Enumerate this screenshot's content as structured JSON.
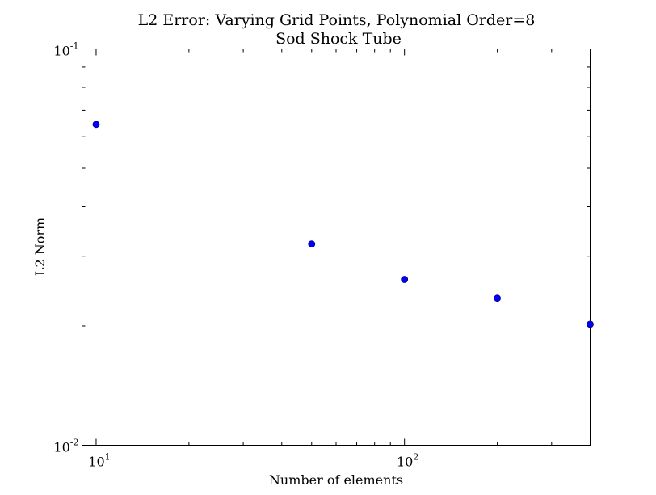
{
  "chart_data": {
    "type": "scatter",
    "title": [
      "L2 Error: Varying Grid Points,  Polynomial Order=8",
      "Sod Shock Tube"
    ],
    "xlabel": "Number of elements",
    "ylabel": "L2 Norm",
    "xscale": "log",
    "yscale": "log",
    "xlim": [
      9.0,
      400
    ],
    "ylim": [
      0.01,
      0.1
    ],
    "x_ticks": [
      {
        "value": 10,
        "base": "10",
        "exp": "1"
      },
      {
        "value": 100,
        "base": "10",
        "exp": "2"
      }
    ],
    "y_ticks": [
      {
        "value": 0.01,
        "base": "10",
        "exp": "-2"
      },
      {
        "value": 0.1,
        "base": "10",
        "exp": "-1"
      }
    ],
    "grid": false,
    "legend": "none",
    "series": [
      {
        "color": "#0000ff",
        "x": [
          10,
          50,
          100,
          200,
          400
        ],
        "y": [
          0.0645,
          0.0322,
          0.0262,
          0.0235,
          0.0202
        ]
      }
    ]
  }
}
